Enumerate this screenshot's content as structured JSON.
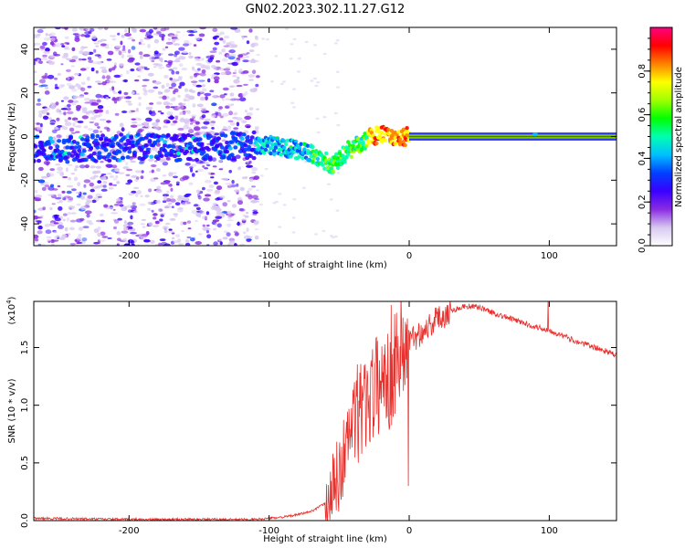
{
  "figure": {
    "title": "GN02.2023.302.11.27.G12"
  },
  "chart_data": [
    {
      "type": "heatmap",
      "xlabel": "Height of straight line (km)",
      "ylabel": "Frequency (Hz)",
      "xlim": [
        -268,
        148
      ],
      "ylim": [
        -50,
        50
      ],
      "xticks": [
        -200,
        -100,
        0,
        100
      ],
      "yticks": [
        -40,
        -20,
        0,
        20,
        40
      ],
      "scatter_region": {
        "x_from": -268,
        "x_to": -108,
        "y_from": -50,
        "y_to": 50
      },
      "ridge": [
        {
          "x": -268,
          "y": -6
        },
        {
          "x": -200,
          "y": -5
        },
        {
          "x": -150,
          "y": -5
        },
        {
          "x": -120,
          "y": -4
        },
        {
          "x": -100,
          "y": -4
        },
        {
          "x": -90,
          "y": -5
        },
        {
          "x": -80,
          "y": -6
        },
        {
          "x": -70,
          "y": -8
        },
        {
          "x": -60,
          "y": -11
        },
        {
          "x": -55,
          "y": -13
        },
        {
          "x": -50,
          "y": -10
        },
        {
          "x": -45,
          "y": -7
        },
        {
          "x": -40,
          "y": -5
        },
        {
          "x": -35,
          "y": -3
        },
        {
          "x": -30,
          "y": -1
        },
        {
          "x": -25,
          "y": 0
        },
        {
          "x": -20,
          "y": 1
        },
        {
          "x": -15,
          "y": 1
        },
        {
          "x": -10,
          "y": 0
        },
        {
          "x": 0,
          "y": 0
        },
        {
          "x": 148,
          "y": 0
        }
      ],
      "carrier_line": {
        "x_from": 0,
        "x_to": 148,
        "y": 0
      },
      "colorbar": {
        "label": "Normalized spectral amplitude",
        "range": [
          0,
          1
        ],
        "ticks": [
          0.0,
          0.2,
          0.4,
          0.6,
          0.8
        ],
        "tick_labels": [
          "0.0",
          "0.2",
          "0.4",
          "0.6",
          "0.8"
        ],
        "colors": [
          "#ffffff",
          "#d8c8f0",
          "#8a2be2",
          "#3a00ff",
          "#0040ff",
          "#00c0ff",
          "#00ffb0",
          "#00ff00",
          "#a0ff00",
          "#ffff00",
          "#ff8000",
          "#ff0000",
          "#ff0080"
        ]
      }
    },
    {
      "type": "line",
      "xlabel": "Height of straight line (km)",
      "ylabel": "SNR (10 * v/v)",
      "multiplier_label": "(x10",
      "multiplier_exp": "4",
      "multiplier_close": ")",
      "xlim": [
        -268,
        148
      ],
      "ylim": [
        0,
        1.9
      ],
      "xticks": [
        -200,
        -100,
        0,
        100
      ],
      "yticks": [
        0.0,
        0.5,
        1.0,
        1.5
      ],
      "ytick_labels": [
        "0.0",
        "0.5",
        "1.0",
        "1.5"
      ],
      "series": [
        {
          "color": "#e8302c",
          "trend": [
            [
              -268,
              0.02
            ],
            [
              -200,
              0.01
            ],
            [
              -150,
              0.01
            ],
            [
              -110,
              0.01
            ],
            [
              -100,
              0.02
            ],
            [
              -90,
              0.03
            ],
            [
              -80,
              0.05
            ],
            [
              -70,
              0.08
            ],
            [
              -60,
              0.15
            ],
            [
              -55,
              0.25
            ],
            [
              -50,
              0.4
            ],
            [
              -45,
              0.65
            ],
            [
              -40,
              0.85
            ],
            [
              -35,
              0.95
            ],
            [
              -30,
              1.05
            ],
            [
              -25,
              1.15
            ],
            [
              -20,
              1.2
            ],
            [
              -15,
              1.3
            ],
            [
              -10,
              1.4
            ],
            [
              -5,
              1.5
            ],
            [
              0,
              1.55
            ],
            [
              10,
              1.65
            ],
            [
              20,
              1.75
            ],
            [
              30,
              1.82
            ],
            [
              40,
              1.86
            ],
            [
              50,
              1.85
            ],
            [
              60,
              1.8
            ],
            [
              70,
              1.76
            ],
            [
              80,
              1.72
            ],
            [
              90,
              1.68
            ],
            [
              100,
              1.65
            ],
            [
              110,
              1.6
            ],
            [
              120,
              1.55
            ],
            [
              130,
              1.51
            ],
            [
              140,
              1.47
            ],
            [
              148,
              1.43
            ]
          ],
          "noise_bands": [
            {
              "x_from": -60,
              "x_to": -40,
              "amp": 0.35
            },
            {
              "x_from": -40,
              "x_to": -20,
              "amp": 0.45
            },
            {
              "x_from": -20,
              "x_to": 0,
              "amp": 0.55
            },
            {
              "x_from": 0,
              "x_to": 30,
              "amp": 0.12
            }
          ],
          "spikes": [
            {
              "x": -39,
              "y": 1.2
            },
            {
              "x": -30,
              "y": 1.3
            },
            {
              "x": -17,
              "y": 1.4
            },
            {
              "x": -8,
              "y": 1.6
            },
            {
              "x": -2,
              "y": 1.7
            },
            {
              "x": -0.5,
              "y": 0.3
            },
            {
              "x": 99,
              "y": 1.92
            }
          ]
        }
      ]
    }
  ]
}
